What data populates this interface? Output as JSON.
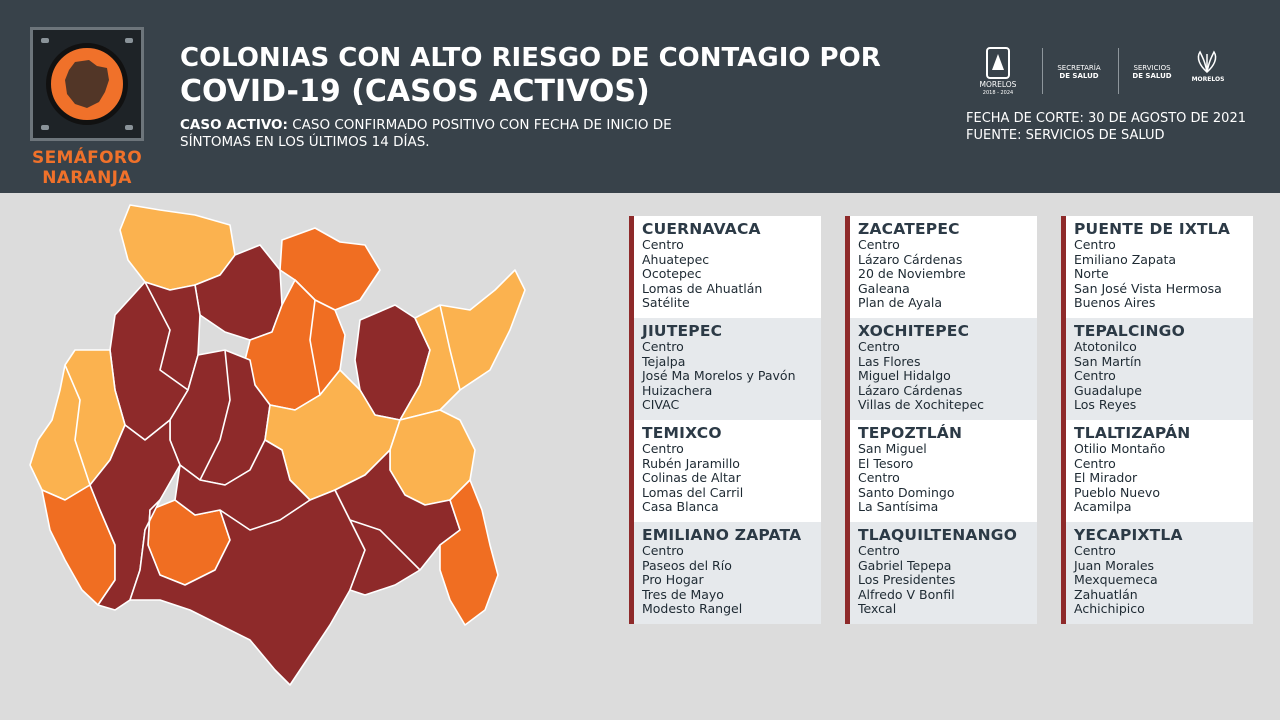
{
  "header": {
    "title_line1": "COLONIAS CON ALTO RIESGO DE CONTAGIO POR",
    "title_line2": "COVID-19 (CASOS ACTIVOS)",
    "definition_label": "CASO ACTIVO:",
    "definition_text": " CASO CONFIRMADO POSITIVO CON FECHA DE INICIO DE SÍNTOMAS EN LOS ÚLTIMOS 14 DÍAS.",
    "date": "FECHA DE CORTE: 30 DE AGOSTO DE 2021",
    "source": "FUENTE: SERVICIOS DE SALUD"
  },
  "semaforo": {
    "line1": "SEMÁFORO",
    "line2": "NARANJA",
    "color": "#f0712a"
  },
  "logos": {
    "morelos": "MORELOS",
    "morelos_years": "2018 - 2024",
    "secretaria_line1": "SECRETARÍA",
    "secretaria_line2": "DE SALUD",
    "servicios_line1": "SERVICIOS",
    "servicios_line2": "DE SALUD",
    "servicios_morelos": "MORELOS"
  },
  "map_colors": {
    "dark_red": "#8e2a2a",
    "orange": "#f06e22",
    "light_orange": "#fbb24f"
  },
  "municipalities": [
    {
      "name": "CUERNAVACA",
      "colonias": [
        "Centro",
        "Ahuatepec",
        "Ocotepec",
        "Lomas de Ahuatlán",
        "Satélite"
      ]
    },
    {
      "name": "ZACATEPEC",
      "colonias": [
        "Centro",
        "Lázaro Cárdenas",
        "20 de Noviembre",
        "Galeana",
        "Plan de Ayala"
      ]
    },
    {
      "name": "PUENTE DE IXTLA",
      "colonias": [
        "Centro",
        "Emiliano Zapata",
        "Norte",
        "San José Vista Hermosa",
        "Buenos Aires"
      ]
    },
    {
      "name": "JIUTEPEC",
      "colonias": [
        "Centro",
        "Tejalpa",
        "José Ma Morelos y Pavón",
        "Huizachera",
        "CIVAC"
      ]
    },
    {
      "name": "XOCHITEPEC",
      "colonias": [
        "Centro",
        "Las Flores",
        "Miguel Hidalgo",
        "Lázaro Cárdenas",
        "Villas de Xochitepec"
      ]
    },
    {
      "name": "TEPALCINGO",
      "colonias": [
        "Atotonilco",
        "San Martín",
        "Centro",
        "Guadalupe",
        "Los Reyes"
      ]
    },
    {
      "name": "TEMIXCO",
      "colonias": [
        "Centro",
        "Rubén Jaramillo",
        "Colinas de Altar",
        "Lomas del Carril",
        "Casa Blanca"
      ]
    },
    {
      "name": "TEPOZTLÁN",
      "colonias": [
        "San Miguel",
        "El Tesoro",
        "Centro",
        "Santo Domingo",
        "La Santísima"
      ]
    },
    {
      "name": "TLALTIZAPÁN",
      "colonias": [
        "Otilio Montaño",
        "Centro",
        "El Mirador",
        "Pueblo Nuevo",
        "Acamilpa"
      ]
    },
    {
      "name": "EMILIANO ZAPATA",
      "colonias": [
        "Centro",
        "Paseos del Río",
        "Pro Hogar",
        "Tres de Mayo",
        "Modesto Rangel"
      ]
    },
    {
      "name": "TLAQUILTENANGO",
      "colonias": [
        "Centro",
        "Gabriel Tepepa",
        "Los Presidentes",
        "Alfredo V Bonfil",
        "Texcal"
      ]
    },
    {
      "name": "YECAPIXTLA",
      "colonias": [
        "Centro",
        "Juan Morales",
        "Mexquemeca",
        "Zahuatlán",
        "Achichipico"
      ]
    }
  ]
}
